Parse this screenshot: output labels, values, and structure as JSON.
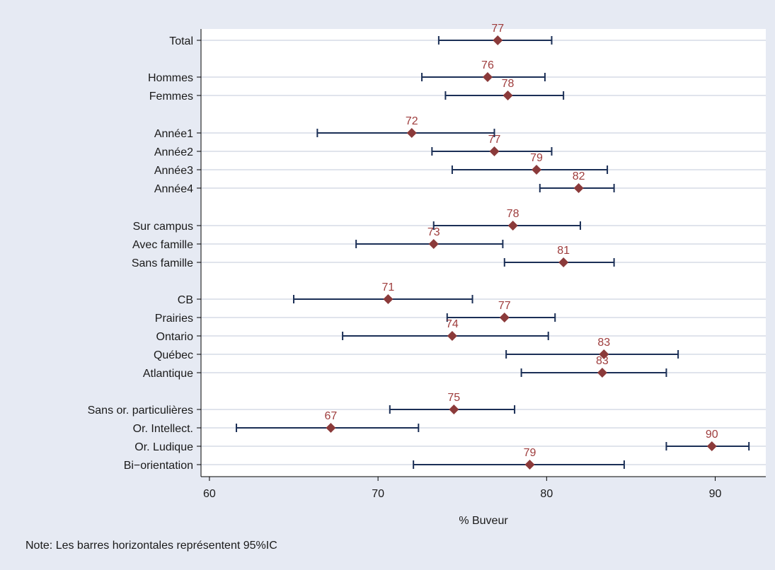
{
  "chart_data": {
    "type": "scatter",
    "subtype": "dot-plot-with-confidence-intervals",
    "title": "",
    "xlabel": "% Buveur",
    "ylabel": "",
    "xlim": [
      59.5,
      93
    ],
    "x_ticks": [
      60,
      70,
      80,
      90
    ],
    "grid": true,
    "legend": "none",
    "note": "Note: Les barres horizontales représentent 95%IC",
    "colors": {
      "marker": "#8b3a3a",
      "value_label": "#9e3c3c",
      "ci_line": "#1b2f56",
      "grid": "#e0e4ec",
      "plot_background": "#ffffff",
      "figure_background": "#e6eaf3"
    },
    "rows": [
      {
        "label": "Total",
        "value": 77.1,
        "display": "77",
        "ci": [
          73.6,
          80.3
        ]
      },
      {
        "label": "Hommes",
        "value": 76.5,
        "display": "76",
        "ci": [
          72.6,
          79.9
        ]
      },
      {
        "label": "Femmes",
        "value": 77.7,
        "display": "78",
        "ci": [
          74.0,
          81.0
        ]
      },
      {
        "label": "Année1",
        "value": 72.0,
        "display": "72",
        "ci": [
          66.4,
          76.9
        ]
      },
      {
        "label": "Année2",
        "value": 76.9,
        "display": "77",
        "ci": [
          73.2,
          80.3
        ]
      },
      {
        "label": "Année3",
        "value": 79.4,
        "display": "79",
        "ci": [
          74.4,
          83.6
        ]
      },
      {
        "label": "Année4",
        "value": 81.9,
        "display": "82",
        "ci": [
          79.6,
          84.0
        ]
      },
      {
        "label": "Sur campus",
        "value": 78.0,
        "display": "78",
        "ci": [
          73.3,
          82.0
        ]
      },
      {
        "label": "Avec famille",
        "value": 73.3,
        "display": "73",
        "ci": [
          68.7,
          77.4
        ]
      },
      {
        "label": "Sans famille",
        "value": 81.0,
        "display": "81",
        "ci": [
          77.5,
          84.0
        ]
      },
      {
        "label": "CB",
        "value": 70.6,
        "display": "71",
        "ci": [
          65.0,
          75.6
        ]
      },
      {
        "label": "Prairies",
        "value": 77.5,
        "display": "77",
        "ci": [
          74.1,
          80.5
        ]
      },
      {
        "label": "Ontario",
        "value": 74.4,
        "display": "74",
        "ci": [
          67.9,
          80.1
        ]
      },
      {
        "label": "Québec",
        "value": 83.4,
        "display": "83",
        "ci": [
          77.6,
          87.8
        ]
      },
      {
        "label": "Atlantique",
        "value": 83.3,
        "display": "83",
        "ci": [
          78.5,
          87.1
        ]
      },
      {
        "label": "Sans or. particulières",
        "value": 74.5,
        "display": "75",
        "ci": [
          70.7,
          78.1
        ]
      },
      {
        "label": "Or. Intellect.",
        "value": 67.2,
        "display": "67",
        "ci": [
          61.6,
          72.4
        ]
      },
      {
        "label": "Or. Ludique",
        "value": 89.8,
        "display": "90",
        "ci": [
          87.1,
          92.0
        ]
      },
      {
        "label": "Bi−orientation",
        "value": 79.0,
        "display": "79",
        "ci": [
          72.1,
          84.6
        ]
      }
    ]
  }
}
